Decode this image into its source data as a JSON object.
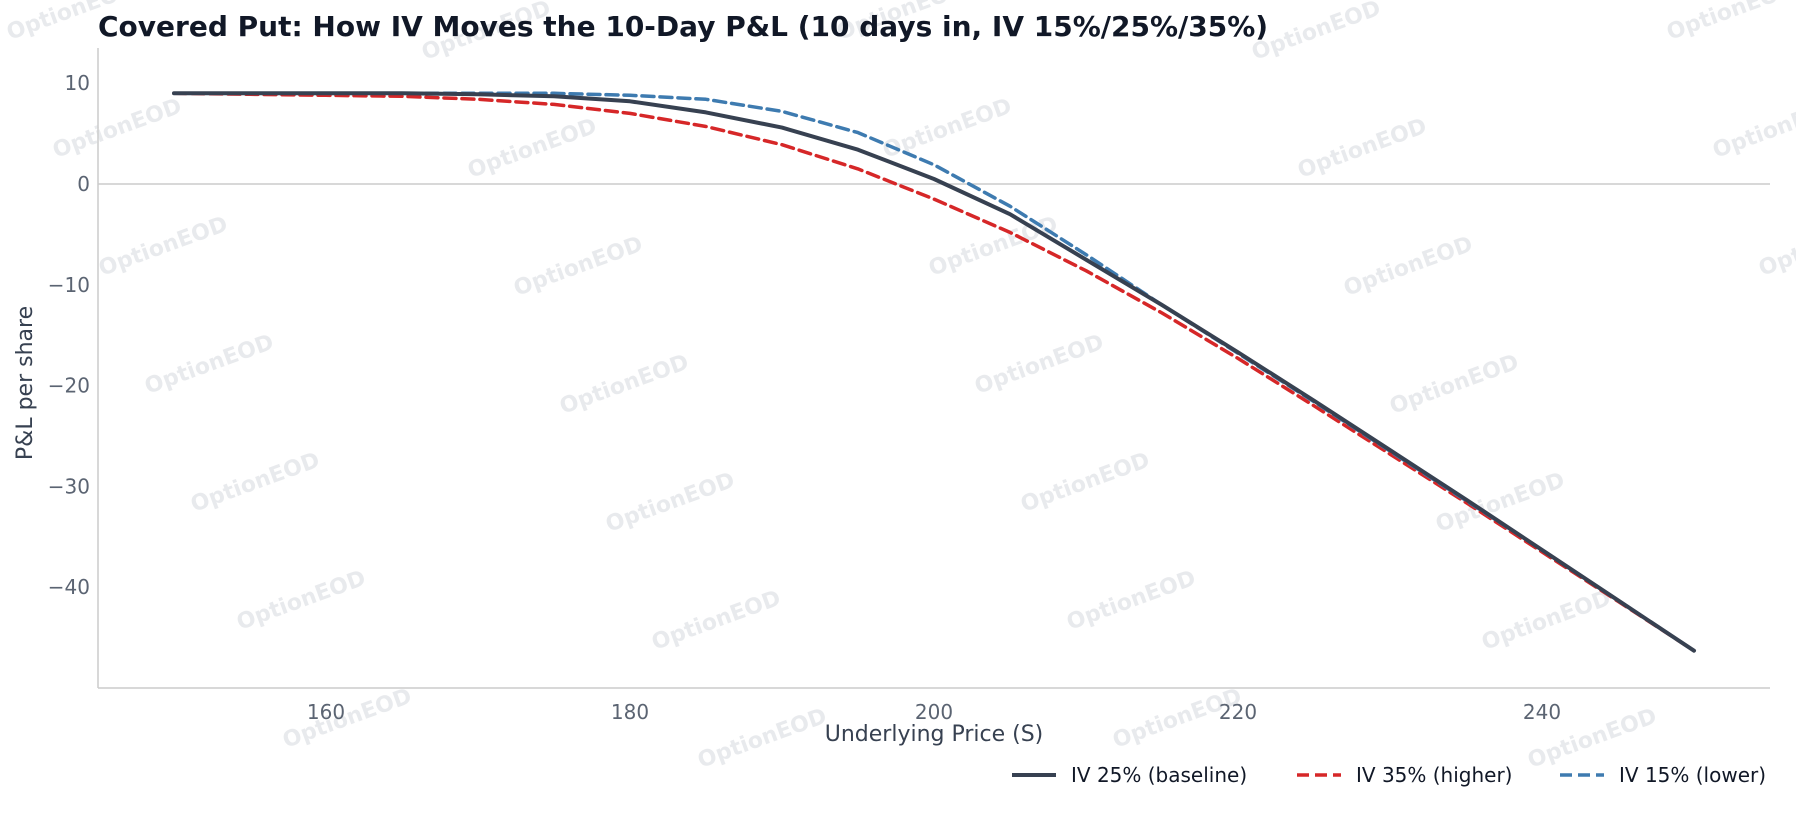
{
  "chart_data": {
    "type": "line",
    "title": "Covered Put: How IV Moves the 10-Day P&L (10 days in, IV 15%/25%/35%)",
    "xlabel": "Underlying Price (S)",
    "ylabel": "P&L per share",
    "xlim": [
      145,
      255
    ],
    "ylim": [
      -50,
      12.5
    ],
    "xticks": [
      160,
      180,
      200,
      220,
      240
    ],
    "yticks": [
      10,
      0,
      -10,
      -20,
      -30,
      -40
    ],
    "xtick_labels": [
      "160",
      "180",
      "200",
      "220",
      "240"
    ],
    "ytick_labels": [
      "10",
      "0",
      "−10",
      "−20",
      "−30",
      "−40"
    ],
    "zero_line": true,
    "grid": false,
    "legend_position": "bottom-right",
    "x": [
      150,
      155,
      160,
      165,
      170,
      175,
      180,
      185,
      190,
      195,
      200,
      205,
      210,
      215,
      220,
      225,
      230,
      235,
      240,
      245,
      250
    ],
    "series": [
      {
        "name": "IV 25% (baseline)",
        "color": "#374151",
        "style": "solid",
        "values": [
          9.0,
          9.0,
          9.0,
          9.0,
          8.9,
          8.7,
          8.2,
          7.1,
          5.6,
          3.4,
          0.5,
          -3.0,
          -7.5,
          -12.0,
          -16.7,
          -21.5,
          -26.4,
          -31.3,
          -36.3,
          -41.3,
          -46.3
        ]
      },
      {
        "name": "IV 35% (higher)",
        "color": "#d62728",
        "style": "dashed",
        "values": [
          9.0,
          8.9,
          8.8,
          8.7,
          8.4,
          7.9,
          7.0,
          5.7,
          3.9,
          1.5,
          -1.5,
          -4.8,
          -8.6,
          -12.8,
          -17.3,
          -22.0,
          -26.8,
          -31.6,
          -36.5,
          -41.4,
          -46.3
        ]
      },
      {
        "name": "IV 15% (lower)",
        "color": "#3e7bb0",
        "style": "dashed",
        "values": [
          9.0,
          9.0,
          9.0,
          9.0,
          9.0,
          9.0,
          8.8,
          8.4,
          7.2,
          5.1,
          1.9,
          -2.2,
          -7.0,
          -12.0,
          -16.8,
          -21.6,
          -26.5,
          -31.4,
          -36.3,
          -41.3,
          -46.3
        ]
      }
    ],
    "watermark": "OptionEOD"
  }
}
